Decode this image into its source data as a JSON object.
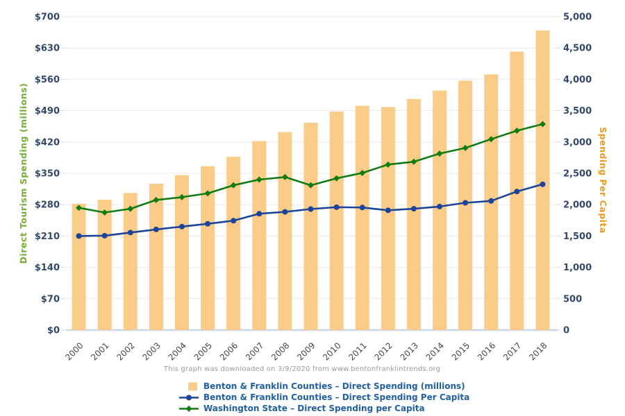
{
  "page": {
    "footer": "This graph was downloaded on 3/9/2020 from www.bentonfranklintrends.org",
    "footer_color": "#9C9C9C",
    "background": "#FFFFFF"
  },
  "chart_data": {
    "type": "bar",
    "subtype": "bar+line dual axis",
    "categories": [
      "2000",
      "2001",
      "2002",
      "2003",
      "2004",
      "2005",
      "2006",
      "2007",
      "2008",
      "2009",
      "2010",
      "2011",
      "2012",
      "2013",
      "2014",
      "2015",
      "2016",
      "2017",
      "2018"
    ],
    "series": [
      {
        "name": "Benton & Franklin Counties – Direct Spending (millions)",
        "type": "bar",
        "axis": "left",
        "color": "#FACC87",
        "values": [
          282,
          291,
          306,
          327,
          346,
          366,
          387,
          422,
          442,
          463,
          488,
          501,
          498,
          516,
          535,
          557,
          571,
          622,
          669
        ]
      },
      {
        "name": "Benton & Franklin Counties – Direct Spending Per Capita",
        "type": "line",
        "marker": "circle",
        "axis": "right",
        "color": "#1C449B",
        "values": [
          1500,
          1505,
          1555,
          1605,
          1650,
          1695,
          1745,
          1855,
          1885,
          1930,
          1960,
          1955,
          1910,
          1935,
          1970,
          2030,
          2060,
          2210,
          2325
        ]
      },
      {
        "name": "Washington State – Direct Spending per Capita",
        "type": "line",
        "marker": "diamond",
        "axis": "right",
        "color": "#0E7E12",
        "values": [
          1950,
          1875,
          1935,
          2075,
          2120,
          2180,
          2310,
          2400,
          2440,
          2310,
          2420,
          2505,
          2640,
          2685,
          2815,
          2905,
          3045,
          3180,
          3285
        ]
      }
    ],
    "left_axis": {
      "title": "Direct Tourism Spending (millions)",
      "min": 0,
      "max": 700,
      "step": 70,
      "prefix": "$",
      "title_color": "#72B22E",
      "tick_color": "#31486B"
    },
    "right_axis": {
      "title": "Spending Per Capita",
      "min": 0,
      "max": 5000,
      "step": 500,
      "prefix": "",
      "title_color": "#F2991D",
      "tick_color": "#31486B"
    },
    "x_axis": {
      "tick_color": "#474747",
      "rotation": -45
    },
    "grid": true,
    "grid_color": "#E9E9E9",
    "tick_mark_color": "#D8D8D8",
    "baseline_color": "#C9D6EC",
    "legend_position": "bottom-left",
    "legend_text_color": "#2060A8"
  }
}
